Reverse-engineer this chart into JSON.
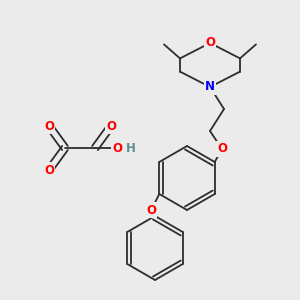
{
  "background_color": "#ebebeb",
  "bond_color": "#2d2d2d",
  "atom_colors": {
    "O": "#ff0000",
    "N": "#0000ff",
    "H": "#5a9090",
    "C": "#2d2d2d"
  },
  "figsize": [
    3.0,
    3.0
  ],
  "dpi": 100
}
